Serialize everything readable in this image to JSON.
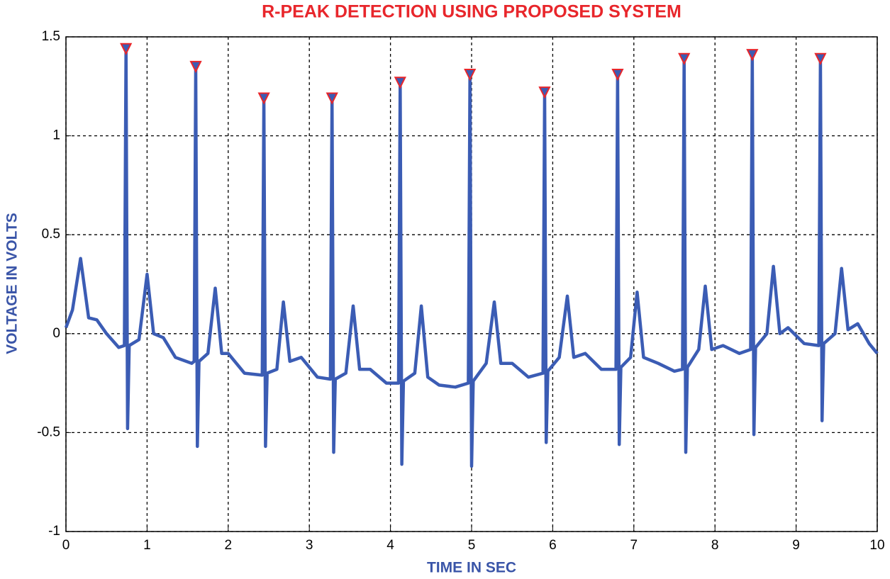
{
  "chart_data": {
    "type": "line",
    "title": "R-PEAK DETECTION USING PROPOSED SYSTEM",
    "xlabel": "TIME IN SEC",
    "ylabel": "VOLTAGE IN VOLTS",
    "xlim": [
      0,
      10
    ],
    "ylim": [
      -1,
      1.5
    ],
    "xticks": [
      0,
      1,
      2,
      3,
      4,
      5,
      6,
      7,
      8,
      9,
      10
    ],
    "yticks": [
      -1,
      -0.5,
      0,
      0.5,
      1,
      1.5
    ],
    "grid": true,
    "series": [
      {
        "type": "line",
        "color": "#3b5cb4",
        "x": [
          0,
          0.08,
          0.18,
          0.28,
          0.38,
          0.5,
          0.65,
          0.72,
          0.74,
          0.76,
          0.78,
          0.9,
          1.0,
          1.08,
          1.2,
          1.35,
          1.55,
          1.58,
          1.6,
          1.62,
          1.64,
          1.75,
          1.84,
          1.92,
          2.0,
          2.2,
          2.42,
          2.44,
          2.46,
          2.48,
          2.6,
          2.68,
          2.76,
          2.9,
          3.1,
          3.26,
          3.28,
          3.3,
          3.32,
          3.45,
          3.54,
          3.62,
          3.75,
          3.95,
          4.1,
          4.12,
          4.14,
          4.16,
          4.3,
          4.38,
          4.46,
          4.6,
          4.8,
          4.96,
          4.98,
          5.0,
          5.02,
          5.18,
          5.28,
          5.36,
          5.5,
          5.7,
          5.88,
          5.9,
          5.92,
          5.94,
          6.08,
          6.18,
          6.26,
          6.4,
          6.6,
          6.78,
          6.8,
          6.82,
          6.84,
          6.96,
          7.04,
          7.12,
          7.3,
          7.5,
          7.6,
          7.62,
          7.64,
          7.66,
          7.8,
          7.88,
          7.96,
          8.1,
          8.3,
          8.44,
          8.46,
          8.48,
          8.5,
          8.64,
          8.72,
          8.8,
          8.9,
          9.1,
          9.28,
          9.3,
          9.32,
          9.34,
          9.48,
          9.56,
          9.64,
          9.76,
          9.9,
          10
        ],
        "values": [
          0.03,
          0.12,
          0.38,
          0.08,
          0.07,
          0.0,
          -0.07,
          -0.06,
          1.44,
          -0.48,
          -0.06,
          -0.03,
          0.3,
          0.0,
          -0.02,
          -0.12,
          -0.15,
          -0.14,
          1.35,
          -0.57,
          -0.14,
          -0.1,
          0.23,
          -0.1,
          -0.1,
          -0.2,
          -0.21,
          1.19,
          -0.57,
          -0.2,
          -0.18,
          0.16,
          -0.14,
          -0.12,
          -0.22,
          -0.23,
          1.19,
          -0.6,
          -0.23,
          -0.2,
          0.14,
          -0.18,
          -0.18,
          -0.25,
          -0.25,
          1.27,
          -0.66,
          -0.24,
          -0.2,
          0.14,
          -0.22,
          -0.26,
          -0.27,
          -0.25,
          1.31,
          -0.67,
          -0.24,
          -0.15,
          0.16,
          -0.15,
          -0.15,
          -0.22,
          -0.2,
          1.22,
          -0.55,
          -0.19,
          -0.12,
          0.19,
          -0.12,
          -0.1,
          -0.18,
          -0.18,
          1.31,
          -0.56,
          -0.17,
          -0.12,
          0.21,
          -0.12,
          -0.15,
          -0.19,
          -0.18,
          1.39,
          -0.6,
          -0.17,
          -0.08,
          0.24,
          -0.08,
          -0.06,
          -0.1,
          -0.08,
          1.41,
          -0.51,
          -0.07,
          0.0,
          0.34,
          0.0,
          0.03,
          -0.05,
          -0.06,
          1.39,
          -0.44,
          -0.05,
          0.0,
          0.33,
          0.02,
          0.05,
          -0.05,
          -0.1
        ]
      },
      {
        "type": "scatter",
        "color": "#3b5cb4",
        "edgecolor": "#e8262b",
        "marker": "triangle-down",
        "x": [
          0.74,
          1.6,
          2.44,
          3.28,
          4.12,
          4.98,
          5.9,
          6.8,
          7.62,
          8.46,
          9.3
        ],
        "values": [
          1.44,
          1.35,
          1.19,
          1.19,
          1.27,
          1.31,
          1.22,
          1.31,
          1.39,
          1.41,
          1.39
        ]
      }
    ]
  }
}
